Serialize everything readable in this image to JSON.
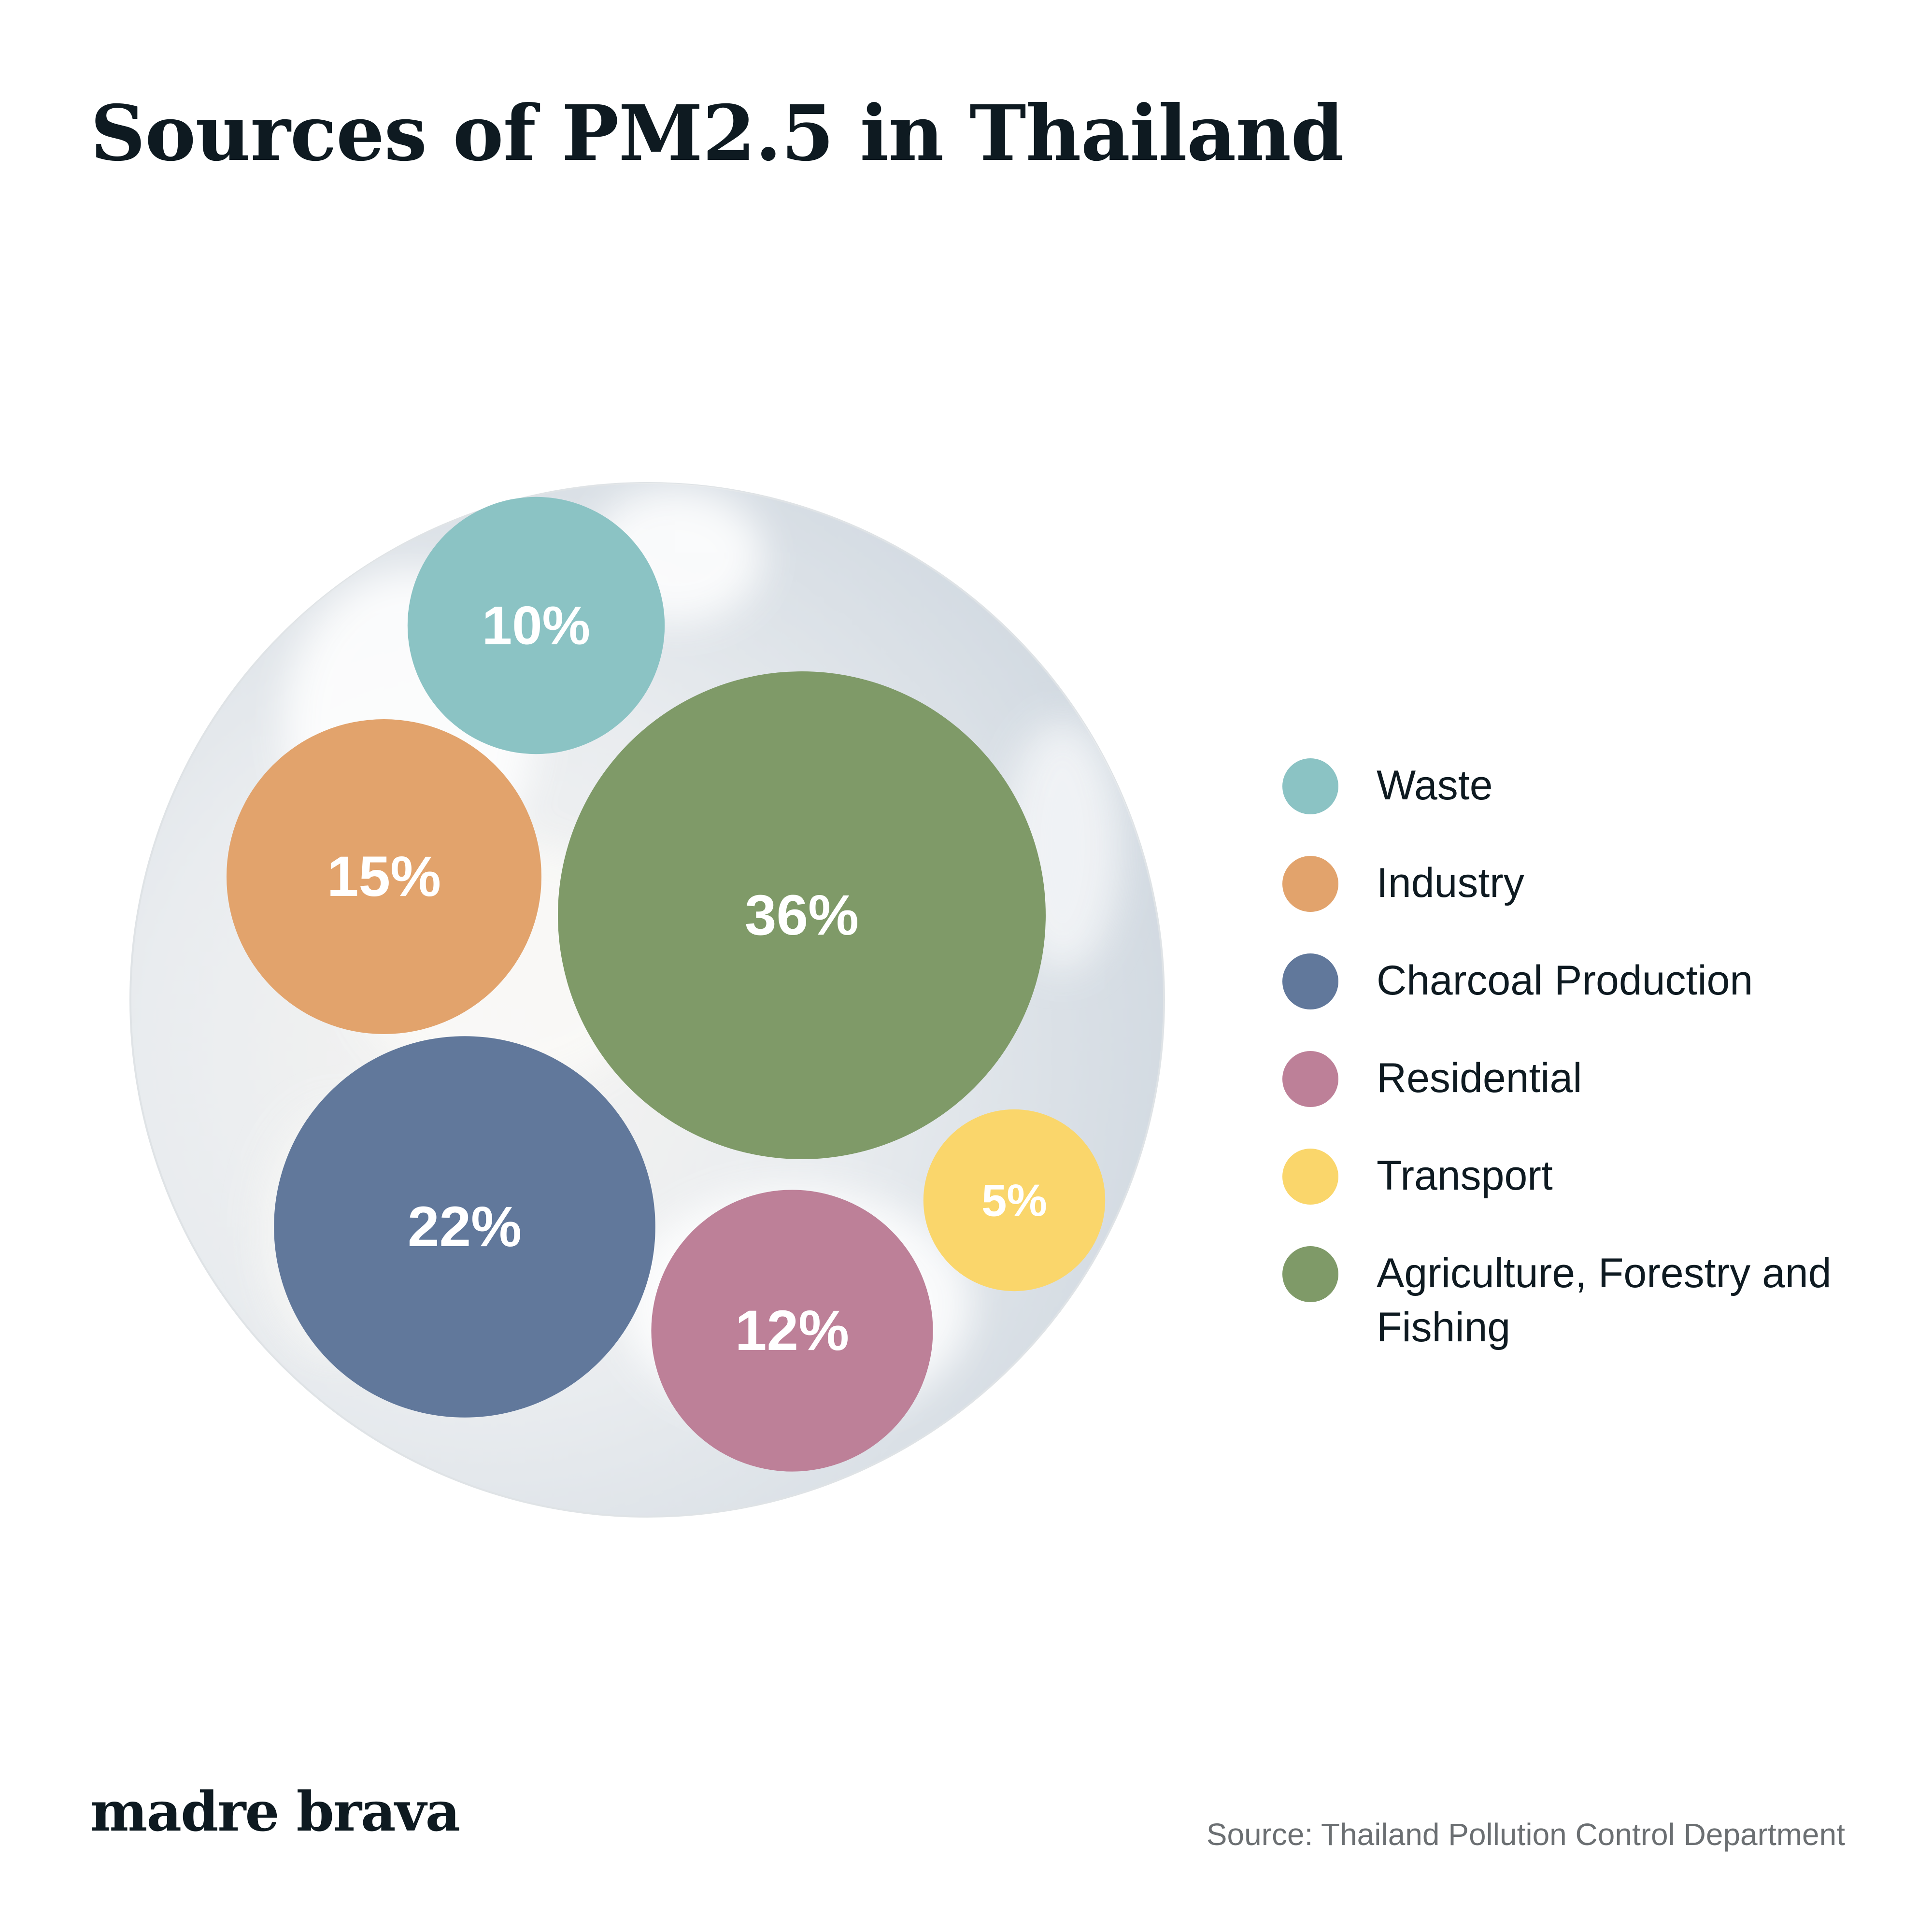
{
  "title": "Sources of PM2.5 in Thailand",
  "brand": "madre brava",
  "source": "Source: Thailand Pollution Control Department",
  "colors": {
    "background": "#ffffff",
    "text": "#0e1a21",
    "source_text": "#6b6f72",
    "sky": "#d6dde4"
  },
  "chart_data": {
    "type": "bubble",
    "unit": "%",
    "legend_position": "right",
    "series": [
      {
        "name": "Waste",
        "value": 10,
        "label": "10%",
        "color": "#8bc3c4"
      },
      {
        "name": "Industry",
        "value": 15,
        "label": "15%",
        "color": "#e2a36c"
      },
      {
        "name": "Charcoal Production",
        "value": 22,
        "label": "22%",
        "color": "#61789b"
      },
      {
        "name": "Residential",
        "value": 12,
        "label": "12%",
        "color": "#bd8098"
      },
      {
        "name": "Transport",
        "value": 5,
        "label": "5%",
        "color": "#fad66b"
      },
      {
        "name": "Agriculture, Forestry and Fishing",
        "value": 36,
        "label": "36%",
        "color": "#7f9a68"
      }
    ]
  }
}
